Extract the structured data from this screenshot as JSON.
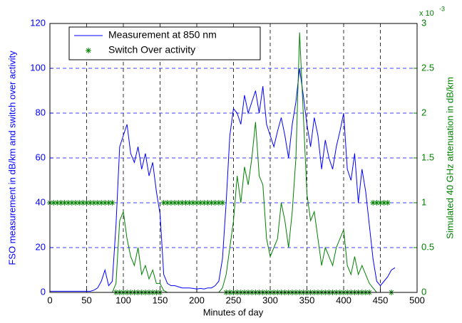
{
  "chart_data": {
    "type": "line",
    "xlabel": "Minutes of day",
    "ylabel": "FSO measurement in dB/km and switch over activity",
    "y2label": "Simulated 40 GHz attenuation in dB/km",
    "y2_exponent_base": "x 10",
    "y2_exponent": "-3",
    "xlim": [
      0,
      500
    ],
    "xticks": [
      0,
      50,
      100,
      150,
      200,
      250,
      300,
      350,
      400,
      450,
      500
    ],
    "ylim": [
      0,
      120
    ],
    "yticks": [
      0,
      20,
      40,
      60,
      80,
      100,
      120
    ],
    "y2lim": [
      0,
      3
    ],
    "y2ticks": [
      0,
      0.5,
      1,
      1.5,
      2,
      2.5,
      3
    ],
    "grid": true,
    "legend": "upper left",
    "series": [
      {
        "name": "Measurement at 850 nm",
        "color": "#0000ff",
        "kind": "line",
        "axis": "y",
        "x": [
          0,
          5,
          10,
          15,
          20,
          25,
          30,
          35,
          40,
          45,
          50,
          55,
          60,
          65,
          70,
          75,
          80,
          85,
          90,
          95,
          100,
          105,
          110,
          115,
          120,
          125,
          130,
          135,
          140,
          145,
          150,
          155,
          160,
          165,
          170,
          175,
          180,
          185,
          190,
          195,
          200,
          205,
          210,
          215,
          220,
          225,
          230,
          235,
          240,
          245,
          250,
          255,
          260,
          265,
          270,
          275,
          280,
          285,
          290,
          295,
          300,
          305,
          310,
          315,
          320,
          325,
          330,
          335,
          340,
          345,
          350,
          355,
          360,
          365,
          370,
          375,
          380,
          385,
          390,
          395,
          400,
          405,
          410,
          415,
          420,
          425,
          430,
          435,
          440,
          445,
          450,
          455,
          460,
          465,
          470
        ],
        "values": [
          0.5,
          0.5,
          0.5,
          0.5,
          0.5,
          0.5,
          0.5,
          0.5,
          0.5,
          0.5,
          0.5,
          0.5,
          1,
          2,
          5,
          10,
          3,
          5,
          30,
          65,
          70,
          75,
          62,
          58,
          65,
          55,
          62,
          52,
          58,
          45,
          35,
          8,
          4,
          3,
          3,
          2.5,
          2,
          2,
          2,
          1.8,
          1.5,
          1.8,
          1.5,
          2,
          2,
          3,
          5,
          15,
          40,
          70,
          82,
          80,
          75,
          88,
          80,
          85,
          90,
          80,
          92,
          75,
          70,
          65,
          72,
          78,
          70,
          60,
          75,
          85,
          100,
          88,
          75,
          65,
          78,
          70,
          55,
          68,
          60,
          55,
          65,
          72,
          80,
          55,
          50,
          62,
          40,
          55,
          45,
          30,
          15,
          5,
          3,
          5,
          7,
          10,
          11
        ]
      },
      {
        "color": "#008000",
        "kind": "line",
        "axis": "y2",
        "x": [
          0,
          5,
          10,
          15,
          20,
          25,
          30,
          35,
          40,
          45,
          50,
          55,
          60,
          65,
          70,
          75,
          80,
          85,
          90,
          95,
          100,
          105,
          110,
          115,
          120,
          125,
          130,
          135,
          140,
          145,
          150,
          155,
          160,
          165,
          170,
          175,
          180,
          185,
          190,
          195,
          200,
          205,
          210,
          215,
          220,
          225,
          230,
          235,
          240,
          245,
          250,
          255,
          260,
          265,
          270,
          275,
          280,
          285,
          290,
          295,
          300,
          305,
          310,
          315,
          320,
          325,
          330,
          335,
          340,
          345,
          350,
          355,
          360,
          365,
          370,
          375,
          380,
          385,
          390,
          395,
          400,
          405,
          410,
          415,
          420,
          425,
          430,
          435,
          440,
          445,
          450,
          455,
          460,
          465,
          470
        ],
        "values": [
          0,
          0,
          0,
          0,
          0,
          0,
          0,
          0,
          0,
          0,
          0,
          0,
          0,
          0,
          0,
          0,
          0,
          0,
          0.1,
          0.8,
          0.9,
          0.6,
          0.4,
          0.3,
          0.5,
          0.2,
          0.3,
          0.15,
          0.25,
          0.1,
          0.1,
          0.02,
          0,
          0,
          0,
          0,
          0,
          0,
          0,
          0,
          0,
          0,
          0,
          0,
          0,
          0,
          0,
          0.05,
          0.2,
          0.5,
          0.8,
          1.3,
          1.0,
          1.4,
          1.2,
          1.5,
          1.9,
          1.3,
          1.2,
          0.6,
          0.4,
          0.5,
          0.6,
          1.0,
          0.8,
          0.5,
          0.9,
          1.5,
          2.9,
          2.0,
          1.1,
          0.8,
          0.9,
          0.6,
          0.3,
          0.5,
          0.4,
          0.3,
          0.5,
          0.6,
          0.7,
          0.3,
          0.2,
          0.4,
          0.2,
          0.3,
          0.2,
          0.1,
          0.05,
          0,
          0,
          0,
          0,
          0,
          0
        ]
      },
      {
        "name": "Switch Over activity",
        "color": "#008000",
        "kind": "marker",
        "axis": "y",
        "x": [
          0,
          5,
          10,
          15,
          20,
          25,
          30,
          35,
          40,
          45,
          50,
          55,
          60,
          65,
          70,
          75,
          80,
          85,
          90,
          95,
          100,
          105,
          110,
          115,
          120,
          125,
          130,
          135,
          140,
          145,
          150,
          155,
          160,
          165,
          170,
          175,
          180,
          185,
          190,
          195,
          200,
          205,
          210,
          215,
          220,
          225,
          230,
          235,
          240,
          245,
          250,
          255,
          260,
          265,
          270,
          275,
          280,
          285,
          290,
          295,
          300,
          305,
          310,
          315,
          320,
          325,
          330,
          335,
          340,
          345,
          350,
          355,
          360,
          365,
          370,
          375,
          380,
          385,
          390,
          395,
          400,
          405,
          410,
          415,
          420,
          425,
          430,
          435,
          440,
          445,
          450,
          455,
          460,
          465
        ],
        "values": [
          40,
          40,
          40,
          40,
          40,
          40,
          40,
          40,
          40,
          40,
          40,
          40,
          40,
          40,
          40,
          40,
          40,
          40,
          0,
          0,
          0,
          0,
          0,
          0,
          0,
          0,
          0,
          0,
          0,
          0,
          0,
          40,
          40,
          40,
          40,
          40,
          40,
          40,
          40,
          40,
          40,
          40,
          40,
          40,
          40,
          40,
          40,
          40,
          0,
          0,
          0,
          0,
          0,
          0,
          0,
          0,
          0,
          0,
          0,
          0,
          0,
          0,
          0,
          0,
          0,
          0,
          0,
          0,
          0,
          0,
          0,
          0,
          0,
          0,
          0,
          0,
          0,
          0,
          0,
          0,
          0,
          0,
          0,
          0,
          0,
          0,
          0,
          0,
          40,
          40,
          40,
          40,
          40,
          0
        ]
      }
    ]
  }
}
